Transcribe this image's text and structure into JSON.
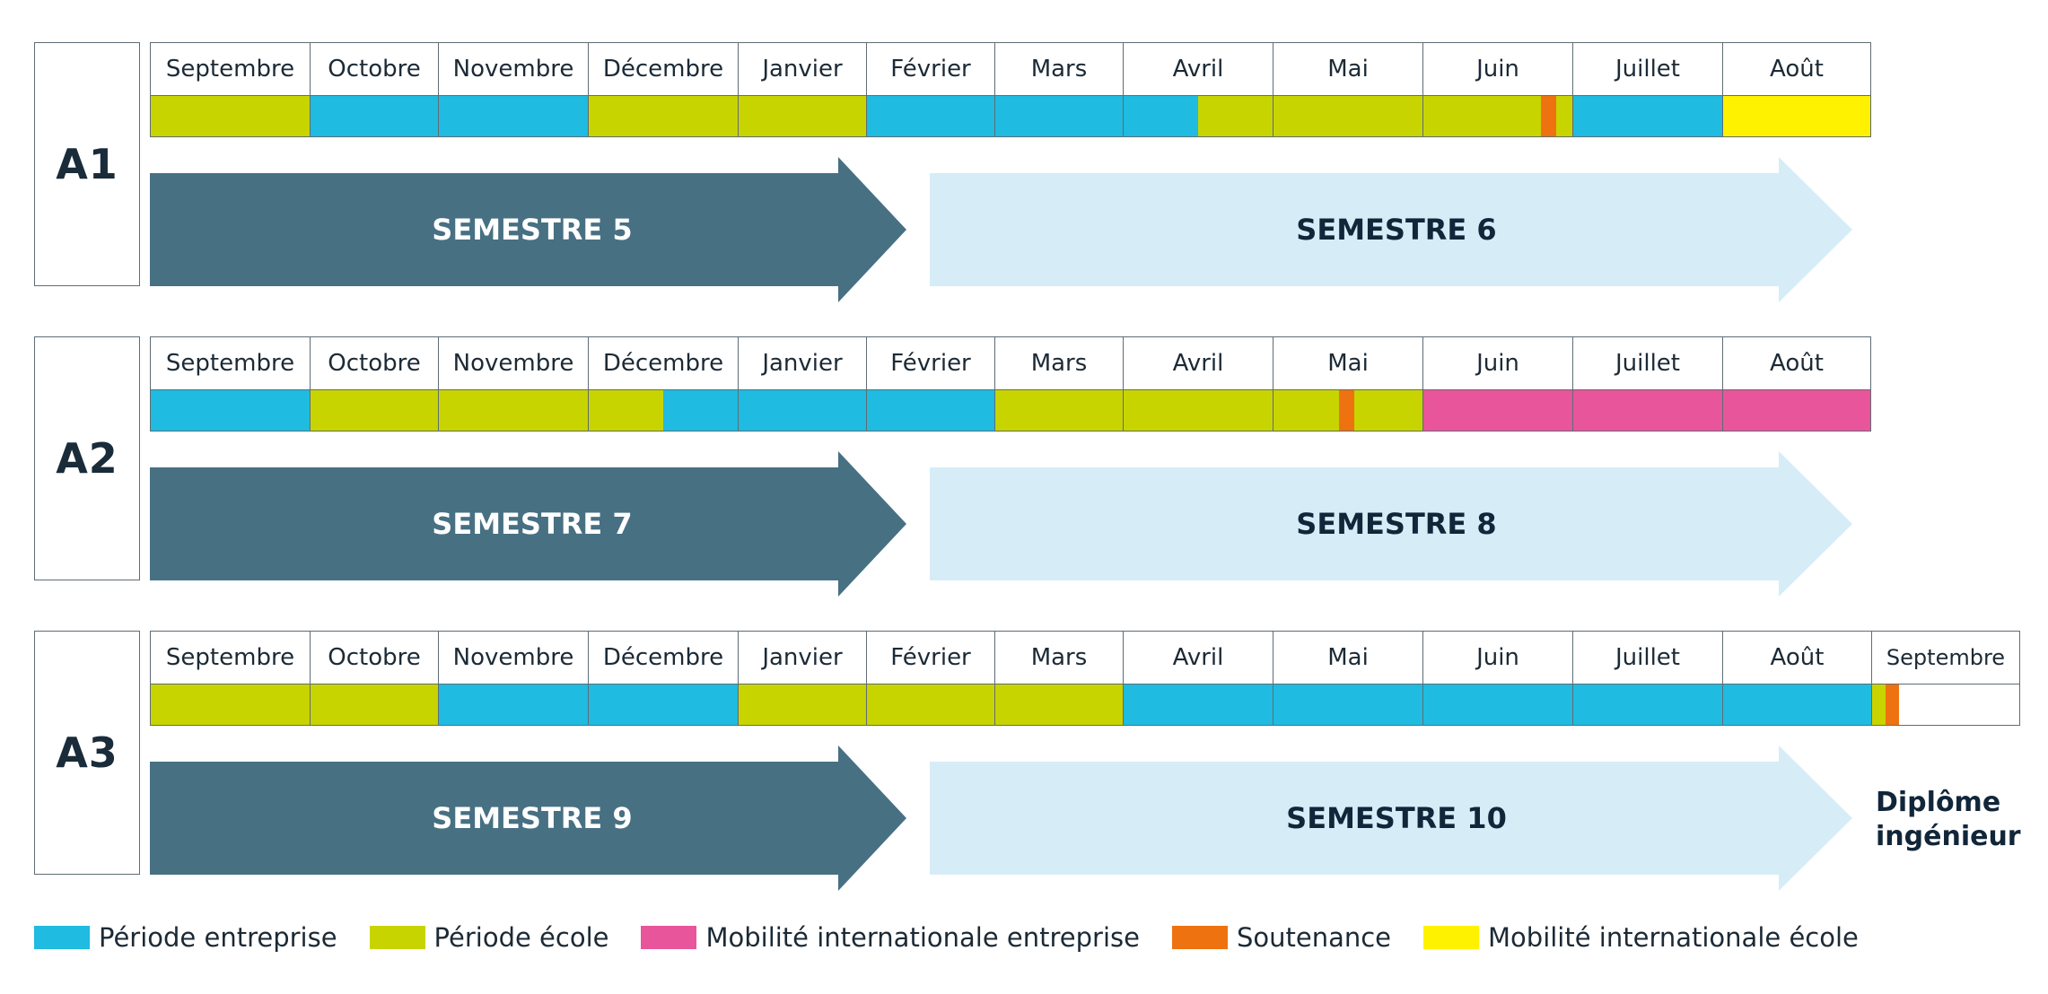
{
  "colors": {
    "entreprise": "#1fbbe0",
    "ecole": "#c8d400",
    "mob_entreprise": "#e8559a",
    "soutenance": "#ee720f",
    "mob_ecole": "#fff200",
    "none": "#ffffff",
    "dark_arrow": "#477083",
    "light_arrow": "#d6edf8"
  },
  "years": [
    {
      "label": "A1",
      "months": [
        {
          "name": "Septembre",
          "segments": [
            [
              "ecole",
              1
            ]
          ]
        },
        {
          "name": "Octobre",
          "segments": [
            [
              "entreprise",
              1
            ]
          ]
        },
        {
          "name": "Novembre",
          "segments": [
            [
              "entreprise",
              1
            ]
          ]
        },
        {
          "name": "Décembre",
          "segments": [
            [
              "ecole",
              1
            ]
          ]
        },
        {
          "name": "Janvier",
          "segments": [
            [
              "ecole",
              1
            ]
          ]
        },
        {
          "name": "Février",
          "segments": [
            [
              "entreprise",
              1
            ]
          ]
        },
        {
          "name": "Mars",
          "segments": [
            [
              "entreprise",
              1
            ]
          ]
        },
        {
          "name": "Avril",
          "segments": [
            [
              "entreprise",
              0.5
            ],
            [
              "ecole",
              0.5
            ]
          ]
        },
        {
          "name": "Mai",
          "segments": [
            [
              "ecole",
              1
            ]
          ]
        },
        {
          "name": "Juin",
          "segments": [
            [
              "ecole",
              0.79
            ],
            [
              "soutenance",
              0.1
            ],
            [
              "ecole",
              0.11
            ]
          ]
        },
        {
          "name": "Juillet",
          "segments": [
            [
              "entreprise",
              1
            ]
          ]
        },
        {
          "name": "Août",
          "segments": [
            [
              "mob_ecole",
              1
            ]
          ]
        }
      ],
      "semesters": [
        "SEMESTRE 5",
        "SEMESTRE 6"
      ]
    },
    {
      "label": "A2",
      "months": [
        {
          "name": "Septembre",
          "segments": [
            [
              "entreprise",
              1
            ]
          ]
        },
        {
          "name": "Octobre",
          "segments": [
            [
              "ecole",
              1
            ]
          ]
        },
        {
          "name": "Novembre",
          "segments": [
            [
              "ecole",
              1
            ]
          ]
        },
        {
          "name": "Décembre",
          "segments": [
            [
              "ecole",
              0.5
            ],
            [
              "entreprise",
              0.5
            ]
          ]
        },
        {
          "name": "Janvier",
          "segments": [
            [
              "entreprise",
              1
            ]
          ]
        },
        {
          "name": "Février",
          "segments": [
            [
              "entreprise",
              1
            ]
          ]
        },
        {
          "name": "Mars",
          "segments": [
            [
              "ecole",
              1
            ]
          ]
        },
        {
          "name": "Avril",
          "segments": [
            [
              "ecole",
              1
            ]
          ]
        },
        {
          "name": "Mai",
          "segments": [
            [
              "ecole",
              0.44
            ],
            [
              "soutenance",
              0.1
            ],
            [
              "ecole",
              0.46
            ]
          ]
        },
        {
          "name": "Juin",
          "segments": [
            [
              "mob_entreprise",
              1
            ]
          ]
        },
        {
          "name": "Juillet",
          "segments": [
            [
              "mob_entreprise",
              1
            ]
          ]
        },
        {
          "name": "Août",
          "segments": [
            [
              "mob_entreprise",
              1
            ]
          ]
        }
      ],
      "semesters": [
        "SEMESTRE 7",
        "SEMESTRE 8"
      ]
    },
    {
      "label": "A3",
      "months": [
        {
          "name": "Septembre",
          "segments": [
            [
              "ecole",
              1
            ]
          ]
        },
        {
          "name": "Octobre",
          "segments": [
            [
              "ecole",
              1
            ]
          ]
        },
        {
          "name": "Novembre",
          "segments": [
            [
              "entreprise",
              1
            ]
          ]
        },
        {
          "name": "Décembre",
          "segments": [
            [
              "entreprise",
              1
            ]
          ]
        },
        {
          "name": "Janvier",
          "segments": [
            [
              "ecole",
              1
            ]
          ]
        },
        {
          "name": "Février",
          "segments": [
            [
              "ecole",
              1
            ]
          ]
        },
        {
          "name": "Mars",
          "segments": [
            [
              "ecole",
              1
            ]
          ]
        },
        {
          "name": "Avril",
          "segments": [
            [
              "entreprise",
              1
            ]
          ]
        },
        {
          "name": "Mai",
          "segments": [
            [
              "entreprise",
              1
            ]
          ]
        },
        {
          "name": "Juin",
          "segments": [
            [
              "entreprise",
              1
            ]
          ]
        },
        {
          "name": "Juillet",
          "segments": [
            [
              "entreprise",
              1
            ]
          ]
        },
        {
          "name": "Août",
          "segments": [
            [
              "entreprise",
              1
            ]
          ]
        },
        {
          "name": "Septembre",
          "segments": [
            [
              "ecole",
              0.09
            ],
            [
              "soutenance",
              0.09
            ],
            [
              "none",
              0.82
            ]
          ]
        }
      ],
      "semesters": [
        "SEMESTRE 9",
        "SEMESTRE 10"
      ]
    }
  ],
  "diploma": {
    "line1": "Diplôme",
    "line2": "ingénieur"
  },
  "legend": [
    {
      "key": "entreprise",
      "label": "Période entreprise"
    },
    {
      "key": "ecole",
      "label": "Période école"
    },
    {
      "key": "mob_entreprise",
      "label": "Mobilité internationale entreprise"
    },
    {
      "key": "soutenance",
      "label": "Soutenance"
    },
    {
      "key": "mob_ecole",
      "label": "Mobilité internationale école"
    }
  ]
}
